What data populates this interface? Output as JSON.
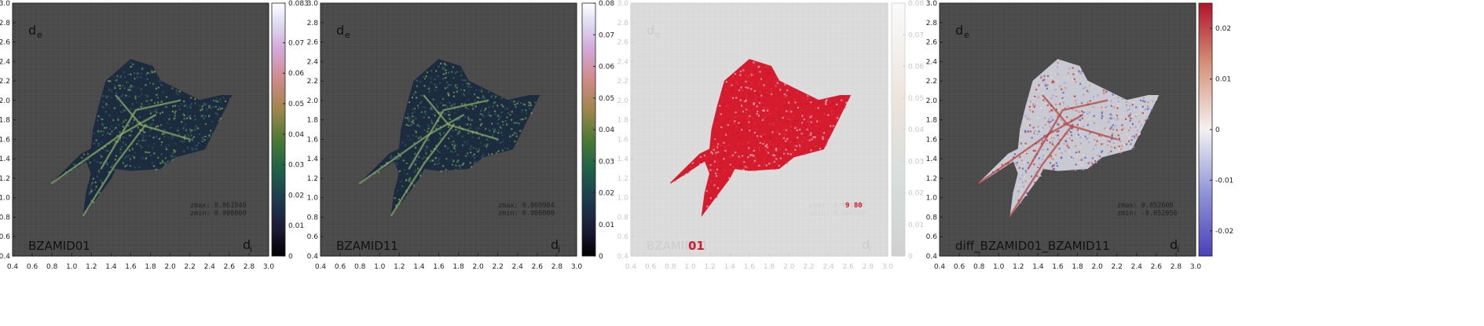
{
  "chart_data": [
    {
      "type": "heatmap",
      "label": "BZAMID01",
      "xlabel": "d",
      "xlabel_sub": "i",
      "ylabel": "d",
      "ylabel_sub": "e",
      "xlim": [
        0.4,
        3.0
      ],
      "ylim": [
        0.4,
        3.0
      ],
      "x_ticks": [
        "0.4",
        "0.6",
        "0.8",
        "1.0",
        "1.2",
        "1.4",
        "1.6",
        "1.8",
        "2.0",
        "2.2",
        "2.4",
        "2.6",
        "2.8",
        "3.0"
      ],
      "y_ticks": [
        "0.4",
        "0.6",
        "0.8",
        "1.0",
        "1.2",
        "1.4",
        "1.6",
        "1.8",
        "2.0",
        "2.2",
        "2.4",
        "2.6",
        "2.8",
        "3.0"
      ],
      "colorbar": {
        "range": [
          0,
          0.083
        ],
        "ticks": [
          "0",
          "0.01",
          "0.02",
          "0.03",
          "0.04",
          "0.05",
          "0.06",
          "0.07",
          "0.083"
        ],
        "palette": "cubehelix"
      },
      "stats": [
        "zmax:  0.061940",
        "zmin:  0.000000"
      ],
      "background": "#4a4a4a",
      "faded": false
    },
    {
      "type": "heatmap",
      "label": "BZAMID11",
      "xlabel": "d",
      "xlabel_sub": "i",
      "ylabel": "d",
      "ylabel_sub": "e",
      "xlim": [
        0.4,
        3.0
      ],
      "ylim": [
        0.4,
        3.0
      ],
      "x_ticks": [
        "0.4",
        "0.6",
        "0.8",
        "1.0",
        "1.2",
        "1.4",
        "1.6",
        "1.8",
        "2.0",
        "2.2",
        "2.4",
        "2.6",
        "2.8",
        "3.0"
      ],
      "y_ticks": [
        "0.4",
        "0.6",
        "0.8",
        "1.0",
        "1.2",
        "1.4",
        "1.6",
        "1.8",
        "2.0",
        "2.2",
        "2.4",
        "2.6",
        "2.8",
        "3.0"
      ],
      "colorbar": {
        "range": [
          0,
          0.08
        ],
        "ticks": [
          "0",
          "0.01",
          "0.02",
          "0.03",
          "0.04",
          "0.05",
          "0.06",
          "0.07",
          "0.08"
        ],
        "palette": "cubehelix"
      },
      "stats": [
        "zmax:  0.069984",
        "zmin:  0.000000"
      ],
      "background": "#4a4a4a",
      "faded": false
    },
    {
      "type": "heatmap",
      "label": "BZAMID01",
      "label_overlay": "01",
      "xlabel": "d",
      "xlabel_sub": "i",
      "ylabel": "d",
      "ylabel_sub": "e",
      "xlim": [
        0.4,
        3.0
      ],
      "ylim": [
        0.4,
        3.0
      ],
      "x_ticks": [
        "0.4",
        "0.6",
        "0.8",
        "1.0",
        "1.2",
        "1.4",
        "1.6",
        "1.8",
        "2.0",
        "2.2",
        "2.4",
        "2.6",
        "2.8",
        "3.0"
      ],
      "y_ticks": [
        "0.4",
        "0.6",
        "0.8",
        "1.0",
        "1.2",
        "1.4",
        "1.6",
        "1.8",
        "2.0",
        "2.2",
        "2.4",
        "2.6",
        "2.8",
        "3.0"
      ],
      "colorbar": {
        "range": [
          0,
          0.08
        ],
        "ticks": [
          "0",
          "0.01",
          "0.02",
          "0.03",
          "0.04",
          "0.05",
          "0.06",
          "0.07",
          "0.08"
        ],
        "palette": "cubehelix"
      },
      "stats": [
        "zmax:  0.069984",
        "zmin:  0.000000"
      ],
      "stats_overlay": "9  80",
      "background": "#dcdcdc",
      "faded": true,
      "fill_color": "#d41c2e"
    },
    {
      "type": "heatmap",
      "label": "diff_BZAMID01_BZAMID11",
      "xlabel": "d",
      "xlabel_sub": "i",
      "ylabel": "d",
      "ylabel_sub": "e",
      "xlim": [
        0.4,
        3.0
      ],
      "ylim": [
        0.4,
        3.0
      ],
      "x_ticks": [
        "0.4",
        "0.6",
        "0.8",
        "1.0",
        "1.2",
        "1.4",
        "1.6",
        "1.8",
        "2.0",
        "2.2",
        "2.4",
        "2.6",
        "2.8",
        "3.0"
      ],
      "y_ticks": [
        "0.4",
        "0.6",
        "0.8",
        "1.0",
        "1.2",
        "1.4",
        "1.6",
        "1.8",
        "2.0",
        "2.2",
        "2.4",
        "2.6",
        "2.8",
        "3.0"
      ],
      "colorbar": {
        "range": [
          -0.025,
          0.025
        ],
        "ticks": [
          "-0.02",
          "-0.01",
          "0",
          "0.01",
          "0.02"
        ],
        "tick_values": [
          -0.02,
          -0.01,
          0,
          0.01,
          0.02
        ],
        "palette": "diverging"
      },
      "stats": [
        "zmax:  0.052600",
        "zmin: -0.052056"
      ],
      "background": "#4a4a4a",
      "faded": false
    }
  ],
  "shape": {
    "outline": [
      [
        1.12,
        0.82
      ],
      [
        1.4,
        1.2
      ],
      [
        1.45,
        1.3
      ],
      [
        1.6,
        1.28
      ],
      [
        1.9,
        1.3
      ],
      [
        2.05,
        1.42
      ],
      [
        2.35,
        1.5
      ],
      [
        2.62,
        2.05
      ],
      [
        2.52,
        2.05
      ],
      [
        2.3,
        2.0
      ],
      [
        2.1,
        2.1
      ],
      [
        1.9,
        2.2
      ],
      [
        1.82,
        2.35
      ],
      [
        1.6,
        2.42
      ],
      [
        1.35,
        2.2
      ],
      [
        1.28,
        1.95
      ],
      [
        1.22,
        1.7
      ],
      [
        1.2,
        1.5
      ],
      [
        1.1,
        1.45
      ],
      [
        0.8,
        1.15
      ],
      [
        0.88,
        1.2
      ],
      [
        1.15,
        1.38
      ],
      [
        1.2,
        1.25
      ],
      [
        1.15,
        1.05
      ]
    ],
    "spines": [
      [
        [
          0.8,
          1.15
        ],
        [
          1.5,
          1.65
        ],
        [
          1.85,
          1.85
        ]
      ],
      [
        [
          1.12,
          0.82
        ],
        [
          1.45,
          1.35
        ],
        [
          1.75,
          1.75
        ]
      ],
      [
        [
          1.3,
          1.3
        ],
        [
          1.65,
          1.9
        ],
        [
          2.1,
          2.0
        ]
      ],
      [
        [
          1.45,
          2.05
        ],
        [
          1.7,
          1.75
        ],
        [
          2.2,
          1.6
        ]
      ]
    ]
  }
}
